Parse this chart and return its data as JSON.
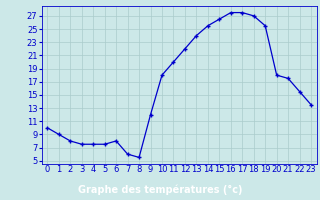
{
  "hours": [
    0,
    1,
    2,
    3,
    4,
    5,
    6,
    7,
    8,
    9,
    10,
    11,
    12,
    13,
    14,
    15,
    16,
    17,
    18,
    19,
    20,
    21,
    22,
    23
  ],
  "temperatures": [
    10,
    9,
    8,
    7.5,
    7.5,
    7.5,
    8,
    6,
    5.5,
    12,
    18,
    20,
    22,
    24,
    25.5,
    26.5,
    27.5,
    27.5,
    27,
    25.5,
    18,
    17.5,
    15.5,
    13.5
  ],
  "yticks": [
    5,
    7,
    9,
    11,
    13,
    15,
    17,
    19,
    21,
    23,
    25,
    27
  ],
  "ylim": [
    4.5,
    28.5
  ],
  "xlim": [
    -0.5,
    23.5
  ],
  "bg_color": "#cce8e8",
  "grid_color": "#aacccc",
  "line_color": "#0000cc",
  "marker": "+",
  "xlabel": "Graphe des températures (°c)",
  "xlabel_color": "#0000cc",
  "tick_label_color": "#0000cc",
  "axis_label_fontsize": 7,
  "tick_fontsize": 6,
  "bottom_bar_color": "#0000cc",
  "bottom_bar_text_color": "#ffffff"
}
